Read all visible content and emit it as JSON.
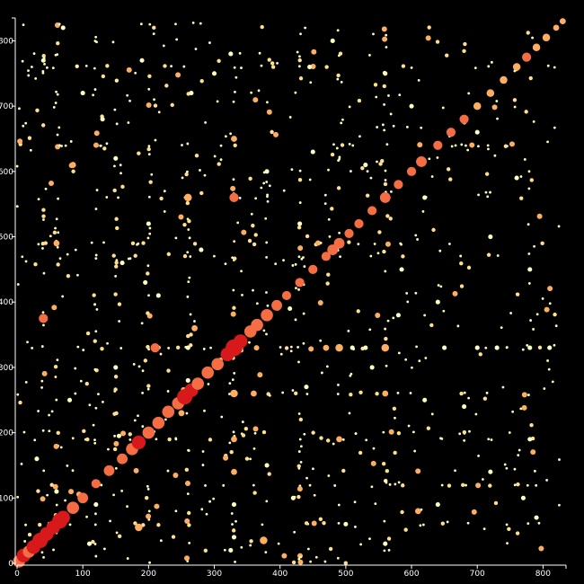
{
  "chart_data": {
    "type": "scatter",
    "title": "",
    "xlabel": "",
    "ylabel": "",
    "xlim": [
      0,
      835
    ],
    "ylim": [
      0,
      835
    ],
    "xticks": [
      0,
      100,
      200,
      300,
      400,
      500,
      600,
      700,
      800
    ],
    "yticks": [
      0,
      100,
      200,
      300,
      400,
      500,
      600,
      700,
      800
    ],
    "grid": false,
    "legend": "none",
    "colors": {
      "background": "#000000",
      "axis": "#ffffff",
      "low": "#ffffbf",
      "mid": "#fdae61",
      "high": "#d7191c"
    },
    "notes_size_encodes_value": true,
    "diagonal_points": [
      [
        3,
        3,
        8
      ],
      [
        10,
        12,
        9
      ],
      [
        18,
        18,
        8
      ],
      [
        25,
        25,
        9
      ],
      [
        35,
        35,
        10
      ],
      [
        45,
        45,
        9
      ],
      [
        55,
        55,
        9
      ],
      [
        65,
        65,
        10
      ],
      [
        70,
        70,
        9
      ],
      [
        85,
        85,
        8
      ],
      [
        100,
        100,
        7
      ],
      [
        120,
        122,
        6
      ],
      [
        140,
        142,
        7
      ],
      [
        160,
        160,
        7
      ],
      [
        175,
        175,
        8
      ],
      [
        185,
        185,
        9
      ],
      [
        200,
        200,
        8
      ],
      [
        215,
        215,
        8
      ],
      [
        230,
        232,
        8
      ],
      [
        245,
        245,
        8
      ],
      [
        255,
        255,
        10
      ],
      [
        265,
        265,
        9
      ],
      [
        275,
        275,
        8
      ],
      [
        290,
        292,
        8
      ],
      [
        305,
        305,
        8
      ],
      [
        320,
        320,
        9
      ],
      [
        330,
        330,
        11
      ],
      [
        340,
        340,
        9
      ],
      [
        355,
        355,
        8
      ],
      [
        365,
        365,
        8
      ],
      [
        380,
        380,
        8
      ],
      [
        395,
        395,
        7
      ],
      [
        410,
        410,
        6
      ],
      [
        430,
        430,
        6
      ],
      [
        450,
        450,
        6
      ],
      [
        470,
        470,
        6
      ],
      [
        480,
        480,
        7
      ],
      [
        490,
        490,
        7
      ],
      [
        505,
        505,
        6
      ],
      [
        520,
        520,
        6
      ],
      [
        540,
        540,
        6
      ],
      [
        560,
        560,
        7
      ],
      [
        580,
        580,
        6
      ],
      [
        600,
        600,
        6
      ],
      [
        615,
        615,
        7
      ],
      [
        640,
        640,
        6
      ],
      [
        660,
        660,
        6
      ],
      [
        680,
        680,
        6
      ],
      [
        700,
        700,
        5
      ],
      [
        720,
        720,
        5
      ],
      [
        740,
        740,
        5
      ],
      [
        760,
        760,
        5
      ],
      [
        775,
        775,
        6
      ],
      [
        790,
        790,
        5
      ],
      [
        805,
        805,
        5
      ],
      [
        820,
        820,
        4
      ],
      [
        830,
        830,
        4
      ]
    ],
    "off_diagonal_points": [
      [
        40,
        375,
        6
      ],
      [
        85,
        610,
        4
      ],
      [
        60,
        490,
        4
      ],
      [
        120,
        90,
        3
      ],
      [
        155,
        195,
        3
      ],
      [
        185,
        55,
        5
      ],
      [
        195,
        430,
        3
      ],
      [
        215,
        410,
        3
      ],
      [
        260,
        560,
        5
      ],
      [
        260,
        330,
        3
      ],
      [
        330,
        650,
        4
      ],
      [
        330,
        560,
        6
      ],
      [
        330,
        330,
        10
      ],
      [
        330,
        260,
        5
      ],
      [
        330,
        190,
        4
      ],
      [
        330,
        140,
        4
      ],
      [
        330,
        90,
        3
      ],
      [
        330,
        40,
        3
      ],
      [
        325,
        20,
        3
      ],
      [
        325,
        780,
        3
      ],
      [
        360,
        260,
        4
      ],
      [
        375,
        35,
        5
      ],
      [
        415,
        390,
        3
      ],
      [
        440,
        270,
        3
      ],
      [
        450,
        630,
        3
      ],
      [
        470,
        330,
        4
      ],
      [
        490,
        330,
        5
      ],
      [
        490,
        490,
        6
      ],
      [
        490,
        190,
        4
      ],
      [
        510,
        330,
        3
      ],
      [
        530,
        330,
        3
      ],
      [
        560,
        330,
        5
      ],
      [
        560,
        560,
        5
      ],
      [
        560,
        260,
        4
      ],
      [
        585,
        450,
        3
      ],
      [
        610,
        80,
        4
      ],
      [
        620,
        250,
        3
      ],
      [
        650,
        330,
        3
      ],
      [
        700,
        330,
        3
      ],
      [
        730,
        330,
        3
      ],
      [
        780,
        190,
        3
      ],
      [
        780,
        330,
        3
      ],
      [
        790,
        70,
        3
      ],
      [
        810,
        330,
        3
      ],
      [
        210,
        330,
        6
      ],
      [
        250,
        230,
        4
      ],
      [
        270,
        360,
        4
      ],
      [
        130,
        680,
        3
      ],
      [
        40,
        770,
        3
      ],
      [
        70,
        820,
        3
      ],
      [
        190,
        770,
        3
      ],
      [
        265,
        720,
        3
      ],
      [
        300,
        750,
        3
      ],
      [
        445,
        760,
        3
      ],
      [
        480,
        800,
        3
      ],
      [
        560,
        750,
        3
      ],
      [
        600,
        700,
        3
      ],
      [
        700,
        660,
        3
      ],
      [
        760,
        590,
        3
      ],
      [
        620,
        560,
        3
      ],
      [
        720,
        500,
        3
      ],
      [
        780,
        450,
        3
      ],
      [
        640,
        400,
        3
      ],
      [
        580,
        380,
        3
      ],
      [
        540,
        300,
        3
      ],
      [
        680,
        240,
        3
      ],
      [
        720,
        140,
        3
      ],
      [
        770,
        100,
        3
      ],
      [
        640,
        90,
        3
      ],
      [
        560,
        30,
        3
      ],
      [
        500,
        60,
        3
      ],
      [
        420,
        100,
        3
      ],
      [
        380,
        150,
        3
      ],
      [
        260,
        280,
        3
      ],
      [
        150,
        300,
        3
      ],
      [
        80,
        250,
        3
      ],
      [
        30,
        160,
        3
      ],
      [
        60,
        110,
        3
      ],
      [
        110,
        30,
        3
      ],
      [
        160,
        460,
        3
      ],
      [
        200,
        520,
        3
      ],
      [
        280,
        480,
        3
      ],
      [
        380,
        600,
        3
      ],
      [
        430,
        520,
        3
      ],
      [
        530,
        610,
        3
      ],
      [
        150,
        620,
        3
      ],
      [
        100,
        720,
        3
      ]
    ]
  }
}
